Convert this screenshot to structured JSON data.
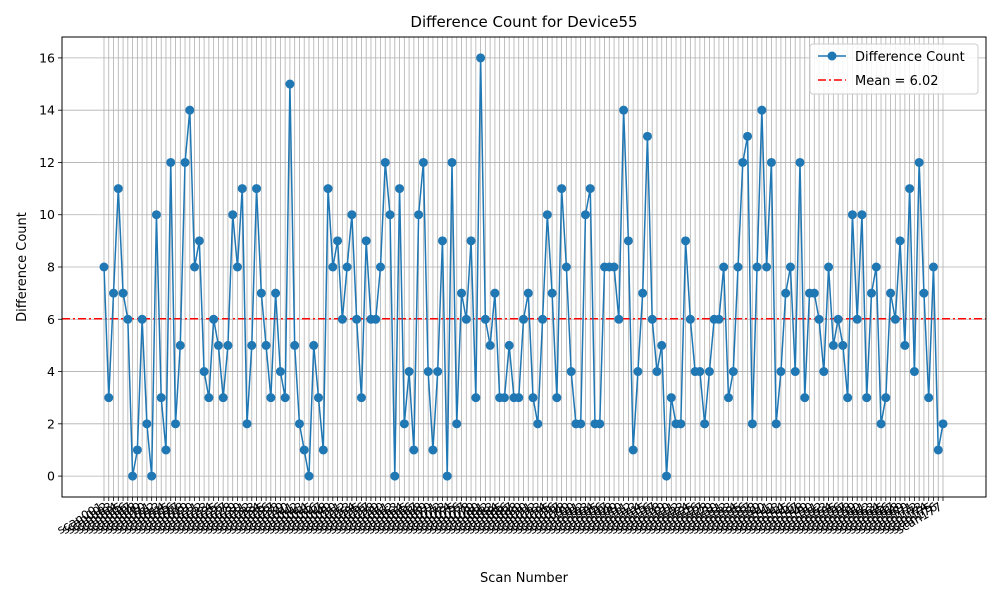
{
  "chart_data": {
    "type": "line",
    "title": "Difference Count for Device55",
    "xlabel": "Scan Number",
    "ylabel": "Difference Count",
    "ylim": [
      -0.8,
      16.8
    ],
    "yticks": [
      0,
      2,
      4,
      6,
      8,
      10,
      12,
      14,
      16
    ],
    "grid": true,
    "legend_position": "top-right",
    "x_tick_prefix": "scan",
    "series": [
      {
        "name": "Difference Count",
        "color": "#1f77b4",
        "marker": "circle",
        "values": [
          8,
          3,
          7,
          11,
          7,
          6,
          0,
          1,
          6,
          2,
          0,
          10,
          3,
          1,
          12,
          2,
          5,
          12,
          14,
          8,
          9,
          4,
          3,
          6,
          5,
          3,
          5,
          10,
          8,
          11,
          2,
          5,
          11,
          7,
          5,
          3,
          7,
          4,
          3,
          15,
          5,
          2,
          1,
          0,
          5,
          3,
          1,
          11,
          8,
          9,
          6,
          8,
          10,
          6,
          3,
          9,
          6,
          6,
          8,
          12,
          10,
          0,
          11,
          2,
          4,
          1,
          10,
          12,
          4,
          1,
          4,
          9,
          0,
          12,
          2,
          7,
          6,
          9,
          3,
          16,
          6,
          5,
          7,
          3,
          3,
          5,
          3,
          3,
          6,
          7,
          3,
          2,
          6,
          10,
          7,
          3,
          11,
          8,
          4,
          2,
          2,
          10,
          11,
          2,
          2,
          8,
          8,
          8,
          6,
          14,
          9,
          1,
          4,
          7,
          13,
          6,
          4,
          5,
          0,
          3,
          2,
          2,
          9,
          6,
          4,
          4,
          2,
          4,
          6,
          6,
          8,
          3,
          4,
          8,
          12,
          13,
          2,
          8,
          14,
          8,
          12,
          2,
          4,
          7,
          8,
          4,
          12,
          3,
          7,
          7,
          6,
          4,
          8,
          5,
          6,
          5,
          3,
          10,
          6,
          10,
          3,
          7,
          8,
          2,
          3,
          7,
          6,
          9,
          5,
          11,
          4,
          12,
          7,
          3,
          8,
          1,
          2
        ]
      }
    ],
    "reference_line": {
      "label": "Mean = 6.02",
      "value": 6.02,
      "color": "#ff0000",
      "style": "dash-dot"
    }
  }
}
